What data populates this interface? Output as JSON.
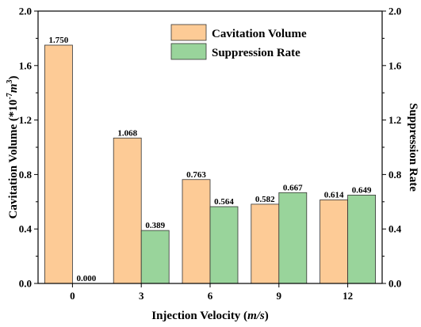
{
  "chart_data": {
    "type": "bar",
    "categories": [
      "0",
      "3",
      "6",
      "9",
      "12"
    ],
    "series": [
      {
        "name": "Cavitation Volume",
        "values": [
          1.75,
          1.068,
          0.763,
          0.582,
          0.614
        ],
        "color": "#fdcb96",
        "axis": "left"
      },
      {
        "name": "Suppression Rate",
        "values": [
          0.0,
          0.389,
          0.564,
          0.667,
          0.649
        ],
        "color": "#99d49b",
        "axis": "right"
      }
    ],
    "data_labels": [
      [
        "1.750",
        "1.068",
        "0.763",
        "0.582",
        "0.614"
      ],
      [
        "0.000",
        "0.389",
        "0.564",
        "0.667",
        "0.649"
      ]
    ],
    "xlabel_prefix": "Injection Velocity (",
    "xlabel_unit": "m/s",
    "xlabel_suffix": ")",
    "ylabel_left_prefix": "Cavitation Volume (*10",
    "ylabel_left_exp": "-7",
    "ylabel_left_unit": "m",
    "ylabel_left_unit_exp": "3",
    "ylabel_left_suffix": ")",
    "ylabel_right": "Suppression Rate",
    "ylim_left": [
      0.0,
      2.0
    ],
    "ylim_right": [
      0.0,
      2.0
    ],
    "yticks_left": [
      "0.0",
      "0.4",
      "0.8",
      "1.2",
      "1.6",
      "2.0"
    ],
    "yticks_right": [
      "0.0",
      "0.4",
      "0.8",
      "1.2",
      "1.6",
      "2.0"
    ],
    "grid": false,
    "legend_position": "top-right"
  }
}
